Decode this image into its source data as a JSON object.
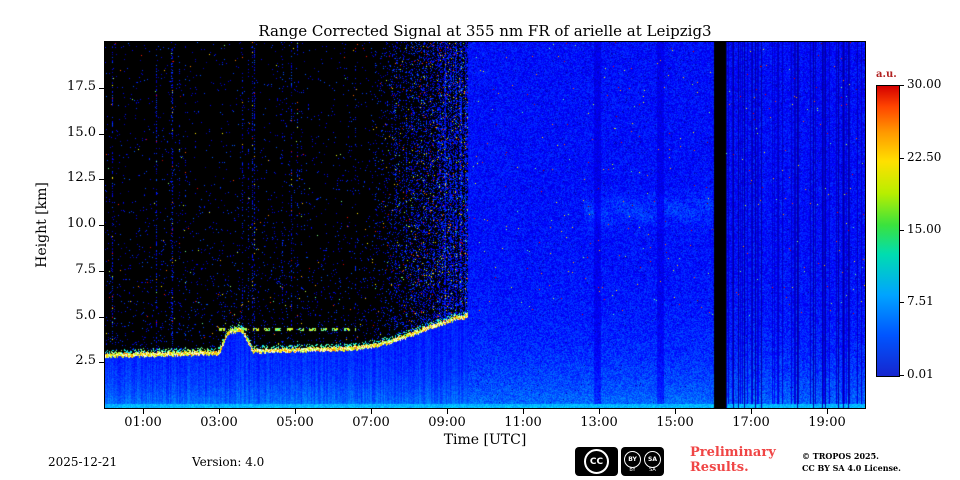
{
  "title": "Range Corrected Signal at 355 nm FR of arielle at Leipzig3",
  "x_axis": {
    "label": "Time [UTC]",
    "ticks": [
      "01:00",
      "03:00",
      "05:00",
      "07:00",
      "09:00",
      "11:00",
      "13:00",
      "15:00",
      "17:00",
      "19:00"
    ],
    "tick_hours": [
      1,
      3,
      5,
      7,
      9,
      11,
      13,
      15,
      17,
      19
    ],
    "range_hours": [
      0,
      20
    ]
  },
  "y_axis": {
    "label": "Height [km]",
    "ticks": [
      "17.5",
      "15.0",
      "12.5",
      "10.0",
      "7.5",
      "5.0",
      "2.5"
    ],
    "tick_values": [
      17.5,
      15.0,
      12.5,
      10.0,
      7.5,
      5.0,
      2.5
    ],
    "range_km": [
      0,
      20
    ]
  },
  "colorbar": {
    "unit": "a.u.",
    "tick_labels": [
      "30.00",
      "22.50",
      "15.00",
      "7.51",
      "0.01"
    ],
    "tick_values": [
      30.0,
      22.5,
      15.0,
      7.51,
      0.01
    ],
    "range": [
      0.01,
      30.0
    ]
  },
  "footer": {
    "date": "2025-12-21",
    "version": "Version: 4.0",
    "preliminary_line1": "Preliminary",
    "preliminary_line2": "Results.",
    "license_line1": "© TROPOS 2025.",
    "license_line2": "CC BY SA 4.0 License.",
    "cc": {
      "cc": "CC",
      "by": "BY",
      "sa": "SA"
    }
  },
  "colors": {
    "preliminary_red": "#f04545",
    "colorbar_unit_red": "#b22222",
    "background": "#ffffff"
  },
  "chart_data": {
    "type": "heatmap",
    "title": "Range Corrected Signal at 355 nm FR of arielle at Leipzig3",
    "xlabel": "Time [UTC]",
    "ylabel": "Height [km]",
    "x": {
      "unit": "hours UTC",
      "min": 0,
      "max": 20
    },
    "y": {
      "unit": "km",
      "min": 0,
      "max": 20
    },
    "z": {
      "unit": "a.u.",
      "min": 0.01,
      "max": 30.0
    },
    "description": "Lidar time-height quicklook. Night (00:00-~09:30): black free troposphere with sparse blue noise speckles, bright blue boundary layer below a yellow-white aerosol layer line near 2.9 km rising to ~5 km by 09:30, broken elevated layer near 4.3 km between 03:00 and 06:30. Daylight noise turns entire field blue from ~09:40 to 20:00 with dense speckle, faint cirrus structures 10-11.5 km between ~12:40 and 16:00, darker columns near 13:00 and 14:40, full black data-gap column near 16:05-16:20, and many vertical dark dropout streaks after 16:20. Bright cyan line along the bottom of the plot.",
    "night": {
      "end_hour": 9.55,
      "speckle_ramp_start": 6.8
    },
    "gap_hours": [
      16.02,
      16.33
    ],
    "dark_columns_hours": [
      [
        12.86,
        13.06
      ],
      [
        14.53,
        14.7
      ]
    ],
    "cirrus_band": {
      "t": [
        12.6,
        16.0
      ],
      "h_center": 10.8,
      "h_sigma": 0.8
    },
    "aerosol_layer": {
      "t": [
        0,
        1,
        2,
        3,
        3.25,
        3.6,
        3.9,
        5,
        6,
        6.5,
        7,
        7.5,
        8,
        8.5,
        9,
        9.3,
        9.55
      ],
      "h": [
        2.85,
        2.9,
        2.95,
        3.0,
        4.15,
        4.25,
        3.1,
        3.15,
        3.2,
        3.25,
        3.35,
        3.6,
        3.95,
        4.35,
        4.7,
        4.95,
        5.0
      ]
    },
    "elevated_layer": {
      "t": [
        3.0,
        6.6
      ],
      "h": 4.3
    },
    "post_gap_streak_fraction": 0.4,
    "bottom_line_h": 0.22
  }
}
